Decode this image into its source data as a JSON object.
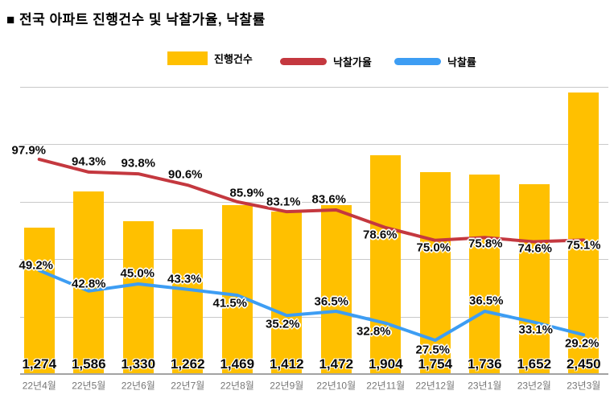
{
  "title": "■ 전국 아파트 진행건수 및 낙찰가율, 낙찰률",
  "legend": [
    {
      "label": "진행건수",
      "type": "bar",
      "color": "#FFC000"
    },
    {
      "label": "낙찰가율",
      "type": "line",
      "color": "#C4383F"
    },
    {
      "label": "낙찰률",
      "type": "line",
      "color": "#3D9DF3"
    }
  ],
  "chart_data": {
    "type": "bar+line combo",
    "title": "전국 아파트 진행건수 및 낙찰가율, 낙찰률",
    "categories": [
      "22년4월",
      "22년5월",
      "22년6월",
      "22년7월",
      "22년8월",
      "22년9월",
      "22년10월",
      "22년11월",
      "22년12월",
      "23년1월",
      "23년2월",
      "23년3월"
    ],
    "series": [
      {
        "name": "진행건수",
        "type": "bar",
        "color": "#FFC000",
        "axis": "count",
        "values": [
          1274,
          1586,
          1330,
          1262,
          1469,
          1412,
          1472,
          1904,
          1754,
          1736,
          1652,
          2450
        ],
        "labels": [
          "1,274",
          "1,586",
          "1,330",
          "1,262",
          "1,469",
          "1,412",
          "1,472",
          "1,904",
          "1,754",
          "1,736",
          "1,652",
          "2,450"
        ]
      },
      {
        "name": "낙찰가율",
        "type": "line",
        "color": "#C4383F",
        "axis": "percent",
        "values": [
          97.9,
          94.3,
          93.8,
          90.6,
          85.9,
          83.1,
          83.6,
          78.6,
          75.0,
          75.8,
          74.6,
          75.1
        ],
        "labels": [
          "97.9%",
          "94.3%",
          "93.8%",
          "90.6%",
          "85.9%",
          "83.1%",
          "83.6%",
          "78.6%",
          "75.0%",
          "75.8%",
          "74.6%",
          "75.1%"
        ]
      },
      {
        "name": "낙찰률",
        "type": "line",
        "color": "#3D9DF3",
        "axis": "percent",
        "values": [
          49.2,
          42.8,
          45.0,
          43.3,
          41.5,
          35.2,
          36.5,
          32.8,
          27.5,
          36.5,
          33.1,
          29.2
        ],
        "labels": [
          "49.2%",
          "42.8%",
          "45.0%",
          "43.3%",
          "41.5%",
          "35.2%",
          "36.5%",
          "32.8%",
          "27.5%",
          "36.5%",
          "33.1%",
          "29.2%"
        ]
      }
    ],
    "count_axis": {
      "min": 0,
      "max": 2500,
      "gridline_step": 500,
      "tick_labels_visible": false
    },
    "percent_axis": {
      "tick_labels_visible": false
    },
    "grid": true,
    "legend_position": "top",
    "data_labels": "all points labeled"
  }
}
